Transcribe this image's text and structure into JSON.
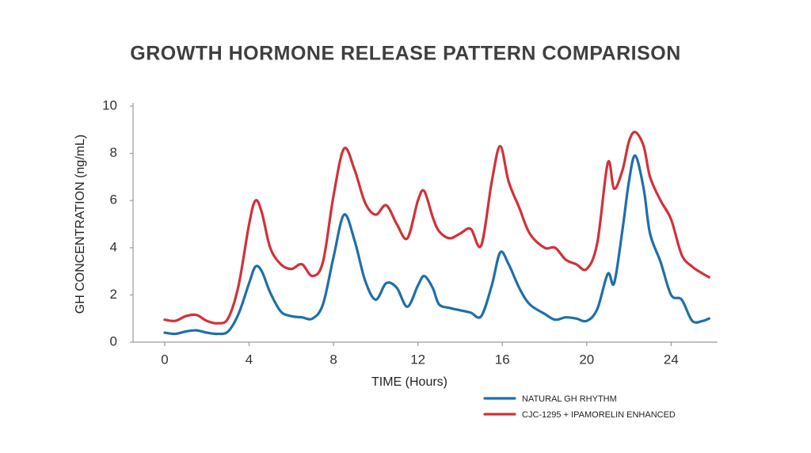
{
  "chart_data": {
    "type": "line",
    "title": "GROWTH HORMONE RELEASE PATTERN COMPARISON",
    "x_label": "TIME (Hours)",
    "y_label": "GH CONCENTRATION (ng/mL)",
    "x": [
      0,
      0.5,
      1,
      1.5,
      2,
      2.5,
      3,
      3.5,
      4,
      4.3,
      4.6,
      5,
      5.5,
      6,
      6.5,
      7,
      7.5,
      8,
      8.5,
      9,
      9.5,
      10,
      10.5,
      11,
      11.5,
      12,
      12.3,
      12.7,
      13,
      13.5,
      14,
      14.5,
      15,
      15.5,
      15.9,
      16.3,
      16.8,
      17.3,
      18,
      18.5,
      19,
      19.5,
      20,
      20.5,
      21,
      21.3,
      21.7,
      22,
      22.3,
      22.7,
      23,
      23.5,
      24,
      24.5,
      25,
      25.5,
      25.8
    ],
    "series": [
      {
        "name": "NATURAL GH RHYTHM",
        "color": "#1f6faa",
        "values": [
          0.4,
          0.35,
          0.45,
          0.5,
          0.4,
          0.35,
          0.45,
          1.2,
          2.5,
          3.2,
          3.0,
          2.1,
          1.3,
          1.1,
          1.05,
          1.0,
          1.6,
          3.6,
          5.4,
          4.3,
          2.6,
          1.8,
          2.5,
          2.3,
          1.5,
          2.4,
          2.8,
          2.3,
          1.6,
          1.45,
          1.35,
          1.25,
          1.1,
          2.4,
          3.8,
          3.3,
          2.3,
          1.6,
          1.2,
          0.95,
          1.05,
          1.0,
          0.9,
          1.4,
          2.9,
          2.5,
          4.8,
          6.8,
          7.9,
          6.5,
          4.6,
          3.4,
          2.0,
          1.8,
          0.9,
          0.9,
          1.0
        ]
      },
      {
        "name": "CJC-1295 + IPAMORELIN ENHANCED",
        "color": "#d0323a",
        "values": [
          0.95,
          0.9,
          1.1,
          1.15,
          0.9,
          0.8,
          1.0,
          2.4,
          5.0,
          6.0,
          5.5,
          4.0,
          3.3,
          3.1,
          3.3,
          2.8,
          3.4,
          6.2,
          8.2,
          7.3,
          5.9,
          5.4,
          5.8,
          5.0,
          4.4,
          6.0,
          6.4,
          5.3,
          4.7,
          4.4,
          4.6,
          4.8,
          4.1,
          6.8,
          8.3,
          6.8,
          5.7,
          4.6,
          4.0,
          4.0,
          3.5,
          3.3,
          3.1,
          4.2,
          7.6,
          6.5,
          7.3,
          8.5,
          8.9,
          8.3,
          7.0,
          6.0,
          5.2,
          3.7,
          3.2,
          2.9,
          2.75
        ]
      }
    ],
    "xlim": [
      -1.5,
      26.2
    ],
    "ylim": [
      0,
      10
    ],
    "xticks": [
      0,
      4,
      8,
      12,
      16,
      20,
      24
    ],
    "yticks": [
      0,
      2,
      4,
      6,
      8,
      10
    ],
    "grid": false,
    "legend": "bottom-right"
  }
}
